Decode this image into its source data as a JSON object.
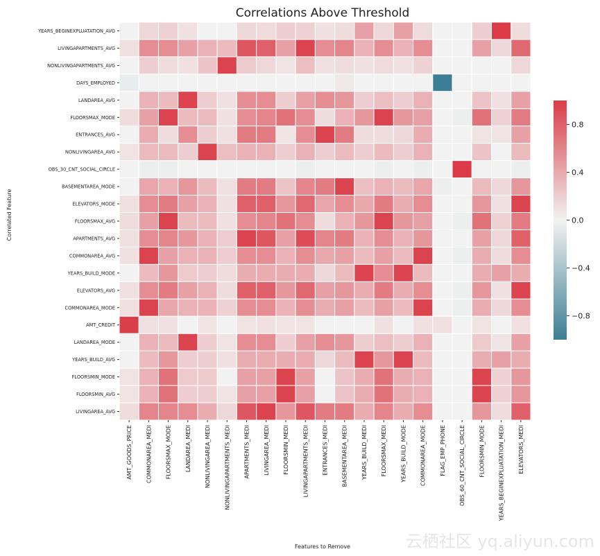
{
  "chart_data": {
    "type": "heatmap",
    "title": "Correlations Above Threshold",
    "xlabel": "Features to Remove",
    "ylabel": "Correlated Feature",
    "x_categories": [
      "AMT_GOODS_PRICE",
      "COMMONAREA_MEDI",
      "FLOORSMAX_MODE",
      "LANDAREA_MEDI",
      "NONLIVINGAREA_MEDI",
      "NONLIVINGAPARTMENTS_MEDI",
      "APARTMENTS_MEDI",
      "LIVINGAREA_MEDI",
      "FLOORSMIN_MEDI",
      "LIVINGAPARTMENTS_MEDI",
      "ENTRANCES_MEDI",
      "BASEMENTAREA_MEDI",
      "YEARS_BUILD_MEDI",
      "FLOORSMAX_MEDI",
      "YEARS_BUILD_MODE",
      "COMMONAREA_MODE",
      "FLAG_EMP_PHONE",
      "OBS_60_CNT_SOCIAL_CIRCLE",
      "FLOORSMIN_MODE",
      "YEARS_BEGINEXPLUATATION_MEDI",
      "ELEVATORS_MEDI"
    ],
    "y_categories": [
      "YEARS_BEGINEXPLUATATION_AVG",
      "LIVINGAPARTMENTS_AVG",
      "NONLIVINGAPARTMENTS_AVG",
      "DAYS_EMPLOYED",
      "LANDAREA_AVG",
      "FLOORSMAX_MODE",
      "ENTRANCES_AVG",
      "NONLIVINGAREA_AVG",
      "OBS_30_CNT_SOCIAL_CIRCLE",
      "BASEMENTAREA_MODE",
      "ELEVATORS_MODE",
      "FLOORSMAX_AVG",
      "APARTMENTS_AVG",
      "COMMONAREA_AVG",
      "YEARS_BUILD_MODE",
      "ELEVATORS_AVG",
      "COMMONAREA_MODE",
      "AMT_CREDIT",
      "LANDAREA_MODE",
      "YEARS_BUILD_AVG",
      "FLOORSMIN_MODE",
      "FLOORSMIN_AVG",
      "LIVINGAREA_AVG"
    ],
    "values": [
      [
        0,
        0.15,
        0.18,
        0.1,
        0,
        0,
        0.15,
        0.13,
        0.2,
        0.18,
        0.1,
        0.12,
        0.45,
        0.15,
        0.45,
        0.13,
        0,
        0,
        0.2,
        1.0,
        0.12
      ],
      [
        0.1,
        0.55,
        0.55,
        0.45,
        0.35,
        0.3,
        0.85,
        0.8,
        0.45,
        0.95,
        0.55,
        0.6,
        0.35,
        0.55,
        0.35,
        0.55,
        0,
        0,
        0.45,
        0.15,
        0.75
      ],
      [
        0,
        0.2,
        0.12,
        0.1,
        0.25,
        0.95,
        0.22,
        0.15,
        0.08,
        0.28,
        0.1,
        0.12,
        0.1,
        0.13,
        0.1,
        0.18,
        0,
        0,
        0,
        0,
        0.15
      ],
      [
        -0.05,
        0,
        0,
        0,
        0,
        0,
        0,
        0,
        0,
        0,
        0,
        0.05,
        0,
        0,
        0,
        0,
        -1.0,
        0,
        0,
        0,
        0
      ],
      [
        0,
        0.35,
        0.3,
        0.95,
        0.2,
        0.1,
        0.55,
        0.55,
        0.2,
        0.45,
        0.55,
        0.5,
        0.2,
        0.28,
        0.2,
        0.35,
        0,
        0,
        0.25,
        0.1,
        0.45
      ],
      [
        0.12,
        0.45,
        0.95,
        0.3,
        0.3,
        0.1,
        0.55,
        0.6,
        0.7,
        0.55,
        0.12,
        0.35,
        0.5,
        0.95,
        0.5,
        0.45,
        0,
        -0.03,
        0.7,
        0.18,
        0.65
      ],
      [
        0,
        0.38,
        0.12,
        0.55,
        0.2,
        0.1,
        0.65,
        0.65,
        0.08,
        0.55,
        0.95,
        0.65,
        0.12,
        0.12,
        0.15,
        0.38,
        0,
        0,
        0.08,
        0.08,
        0.45
      ],
      [
        0.08,
        0.3,
        0.3,
        0.2,
        0.95,
        0.28,
        0.35,
        0.35,
        0.2,
        0.35,
        0.2,
        0.3,
        0.2,
        0.3,
        0.2,
        0.35,
        0,
        0,
        0.25,
        0,
        0.3
      ],
      [
        0,
        -0.03,
        -0.03,
        0,
        0,
        0,
        0,
        0,
        0,
        -0.03,
        0,
        0,
        0,
        -0.03,
        0,
        -0.03,
        0,
        1.0,
        0,
        0,
        -0.03
      ],
      [
        0,
        0.42,
        0.35,
        0.5,
        0.3,
        0.1,
        0.65,
        0.65,
        0.25,
        0.6,
        0.65,
        0.95,
        0.28,
        0.35,
        0.3,
        0.42,
        -0.03,
        0,
        0.3,
        0.15,
        0.5
      ],
      [
        0.1,
        0.55,
        0.65,
        0.45,
        0.35,
        0.1,
        0.8,
        0.8,
        0.5,
        0.75,
        0.42,
        0.55,
        0.4,
        0.65,
        0.38,
        0.55,
        0,
        0,
        0.5,
        0.1,
        0.95
      ],
      [
        0.12,
        0.45,
        0.95,
        0.3,
        0.3,
        0.1,
        0.55,
        0.6,
        0.7,
        0.55,
        0.12,
        0.35,
        0.5,
        0.95,
        0.5,
        0.45,
        0,
        -0.03,
        0.7,
        0.18,
        0.65
      ],
      [
        0.1,
        0.55,
        0.6,
        0.5,
        0.35,
        0.2,
        0.95,
        0.85,
        0.45,
        0.9,
        0.6,
        0.65,
        0.35,
        0.55,
        0.35,
        0.5,
        0,
        0,
        0.45,
        0.15,
        0.8
      ],
      [
        0.1,
        0.95,
        0.45,
        0.35,
        0.35,
        0.2,
        0.55,
        0.55,
        0.35,
        0.55,
        0.4,
        0.45,
        0.3,
        0.45,
        0.3,
        0.95,
        0,
        -0.03,
        0.38,
        0.12,
        0.55
      ],
      [
        0,
        0.3,
        0.5,
        0.22,
        0.2,
        0.12,
        0.38,
        0.38,
        0.38,
        0.38,
        0.15,
        0.3,
        0.95,
        0.55,
        0.95,
        0.3,
        0,
        0,
        0.38,
        0.45,
        0.38
      ],
      [
        0.1,
        0.55,
        0.65,
        0.45,
        0.35,
        0.12,
        0.8,
        0.8,
        0.5,
        0.75,
        0.45,
        0.5,
        0.38,
        0.65,
        0.38,
        0.55,
        0,
        -0.03,
        0.5,
        0.1,
        0.95
      ],
      [
        0.1,
        0.95,
        0.42,
        0.35,
        0.35,
        0.18,
        0.55,
        0.55,
        0.35,
        0.55,
        0.38,
        0.45,
        0.3,
        0.45,
        0.3,
        0.95,
        0,
        -0.03,
        0.38,
        0.15,
        0.55
      ],
      [
        0.98,
        0.1,
        0.1,
        0,
        0.08,
        0,
        0.08,
        0.1,
        0.08,
        0.08,
        0,
        0,
        0,
        0.1,
        0,
        0.1,
        0.1,
        0,
        0.08,
        0,
        0.1
      ],
      [
        0,
        0.35,
        0.3,
        0.95,
        0.2,
        0.08,
        0.55,
        0.55,
        0.2,
        0.45,
        0.55,
        0.5,
        0.2,
        0.28,
        0.2,
        0.35,
        0,
        0,
        0.22,
        0.08,
        0.45
      ],
      [
        0,
        0.3,
        0.5,
        0.2,
        0.2,
        0.1,
        0.38,
        0.38,
        0.38,
        0.38,
        0.15,
        0.3,
        0.95,
        0.5,
        0.95,
        0.3,
        0,
        0,
        0.38,
        0.45,
        0.38
      ],
      [
        0.08,
        0.35,
        0.7,
        0.22,
        0.22,
        0,
        0.45,
        0.45,
        0.95,
        0.45,
        0,
        0.25,
        0.38,
        0.7,
        0.38,
        0.35,
        0,
        0,
        0.95,
        0.18,
        0.5
      ],
      [
        0.08,
        0.35,
        0.7,
        0.2,
        0.2,
        0.08,
        0.45,
        0.45,
        0.95,
        0.45,
        0,
        0.25,
        0.38,
        0.7,
        0.38,
        0.35,
        0,
        0,
        0.95,
        0.18,
        0.5
      ],
      [
        0.12,
        0.6,
        0.6,
        0.55,
        0.38,
        0.15,
        0.85,
        0.95,
        0.5,
        0.85,
        0.65,
        0.65,
        0.38,
        0.6,
        0.38,
        0.55,
        0,
        0,
        0.5,
        0.12,
        0.8
      ]
    ],
    "vmin": -1,
    "vmax": 1,
    "colorbar_ticks": [
      0.8,
      0.4,
      0.0,
      -0.4,
      -0.8
    ],
    "colorbar_tick_labels": [
      "0.8",
      "0.4",
      "0.0",
      "−0.4",
      "−0.8"
    ],
    "colors": {
      "negative": "#3c7e94",
      "center": "#f2f2f2",
      "positive": "#da3b46"
    },
    "grid": false,
    "legend": "colorbar-right"
  },
  "watermark": "云栖社区 yq.aliyun.com"
}
